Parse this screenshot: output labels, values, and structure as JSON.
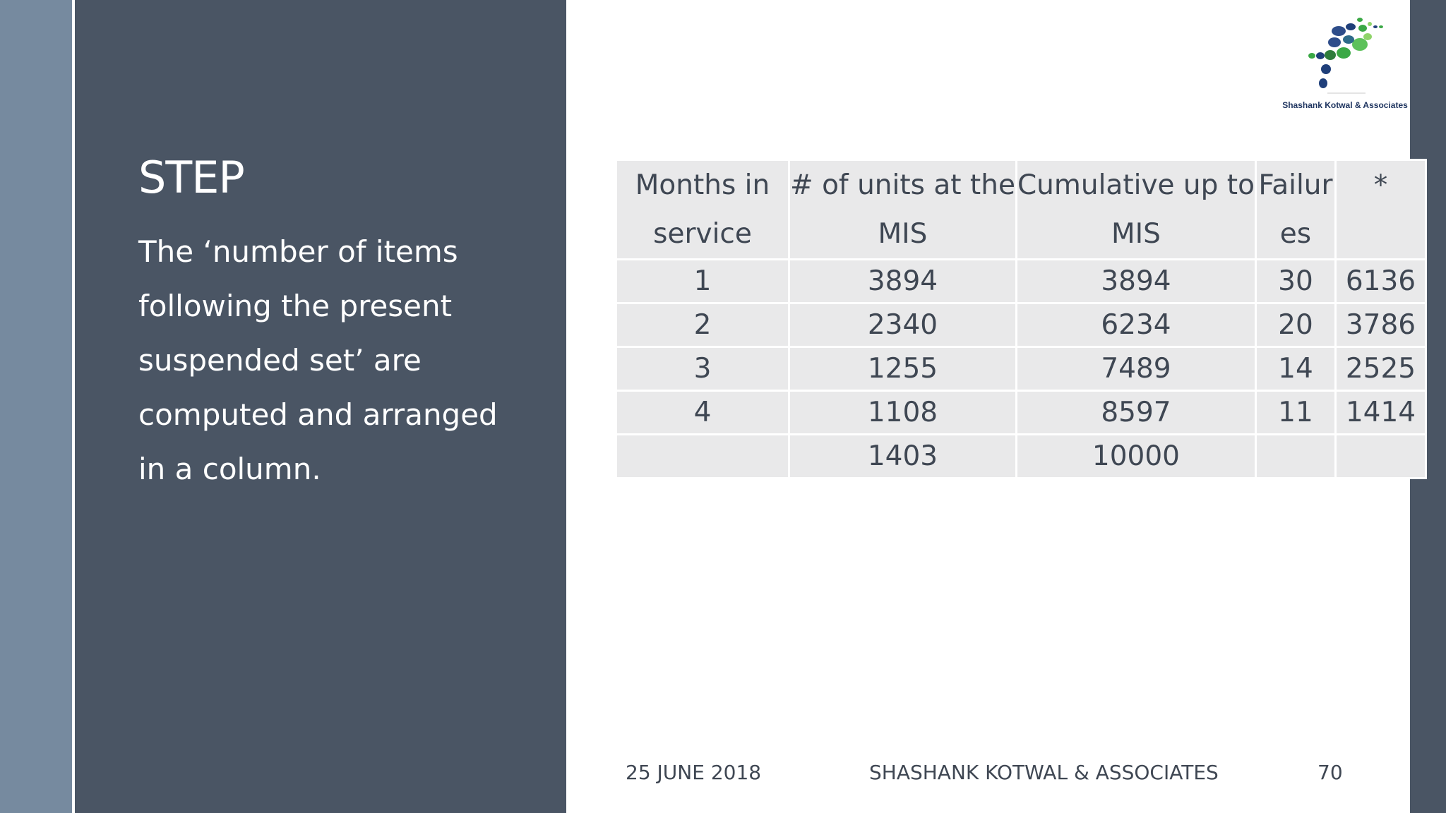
{
  "slide": {
    "title": "STEP",
    "body": "The ‘number of items following the present suspended set’ are computed and arranged in a column."
  },
  "logo": {
    "caption": "Shashank Kotwal & Associates"
  },
  "table": {
    "headers": [
      [
        "Months in",
        "service"
      ],
      [
        "# of units at the",
        "MIS"
      ],
      [
        "Cumulative up to",
        "MIS"
      ],
      [
        "Failur",
        "es"
      ],
      [
        "*",
        ""
      ]
    ],
    "rows": [
      [
        "1",
        "3894",
        "3894",
        "30",
        "6136"
      ],
      [
        "2",
        "2340",
        "6234",
        "20",
        "3786"
      ],
      [
        "3",
        "1255",
        "7489",
        "14",
        "2525"
      ],
      [
        "4",
        "1108",
        "8597",
        "11",
        "1414"
      ],
      [
        "",
        "1403",
        "10000",
        "",
        ""
      ]
    ]
  },
  "footer": {
    "date": "25 JUNE 2018",
    "organization": "SHASHANK KOTWAL & ASSOCIATES",
    "page_number": "70"
  },
  "colors": {
    "panel": "#4a5564",
    "strip": "#768a9f",
    "table_cell": "#e9e9ea",
    "logo_navy": "#1f3f7a",
    "logo_green": "#3aa845"
  }
}
